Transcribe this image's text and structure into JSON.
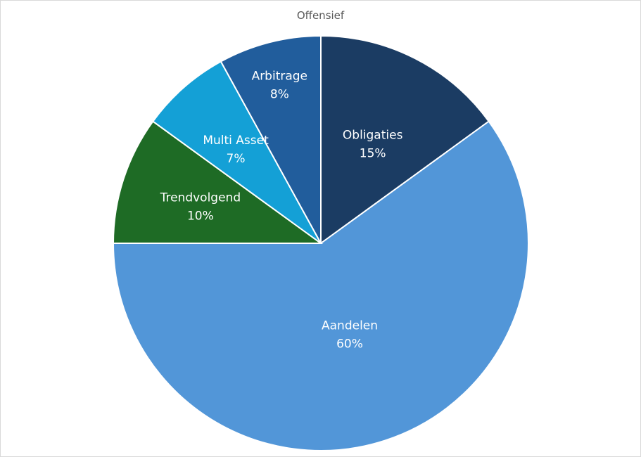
{
  "chart_data": {
    "type": "pie",
    "title": "Offensief",
    "categories": [
      "Obligaties",
      "Aandelen",
      "Trendvolgend",
      "Multi Asset",
      "Arbitrage"
    ],
    "values": [
      15,
      60,
      10,
      7,
      8
    ],
    "value_labels": [
      "15%",
      "60%",
      "10%",
      "7%",
      "8%"
    ],
    "colors": [
      "#1b3c63",
      "#5296d8",
      "#1e6b25",
      "#14a0d6",
      "#215d9c"
    ],
    "start_angle_deg": 0,
    "direction": "clockwise",
    "legend": "none",
    "data_labels": "inside"
  }
}
